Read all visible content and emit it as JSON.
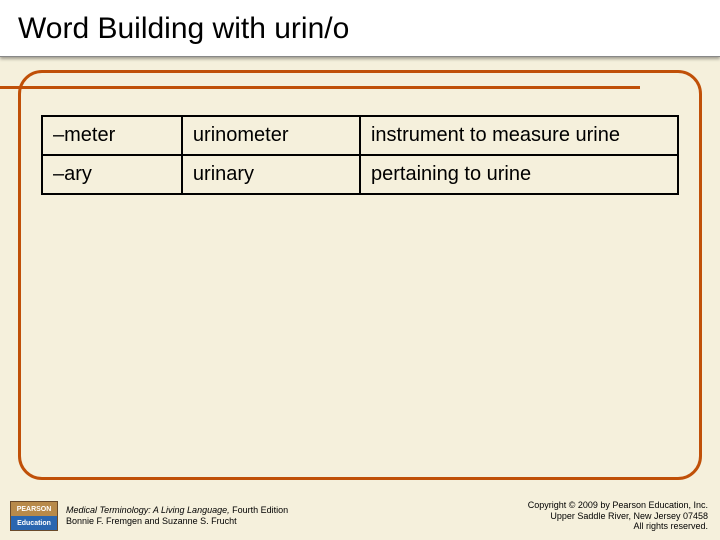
{
  "slide": {
    "title": "Word Building with urin/o",
    "accent_color": "#c05008",
    "background_color": "#f5f0dc",
    "title_bg": "#ffffff"
  },
  "table": {
    "columns": [
      "suffix",
      "term",
      "definition"
    ],
    "col_widths": [
      "22%",
      "28%",
      "50%"
    ],
    "border_color": "#000000",
    "rows": [
      {
        "suffix": "–meter",
        "term": "urinometer",
        "definition": "instrument to measure urine"
      },
      {
        "suffix": "–ary",
        "term": "urinary",
        "definition": "pertaining to urine"
      }
    ]
  },
  "footer": {
    "publisher_top": "PEARSON",
    "publisher_bot": "Education",
    "book_title": "Medical Terminology: A Living Language,",
    "book_edition": " Fourth Edition",
    "authors": "Bonnie F. Fremgen and Suzanne S. Frucht",
    "copyright_line1": "Copyright © 2009 by Pearson Education, Inc.",
    "copyright_line2": "Upper Saddle River, New Jersey 07458",
    "copyright_line3": "All rights reserved."
  }
}
